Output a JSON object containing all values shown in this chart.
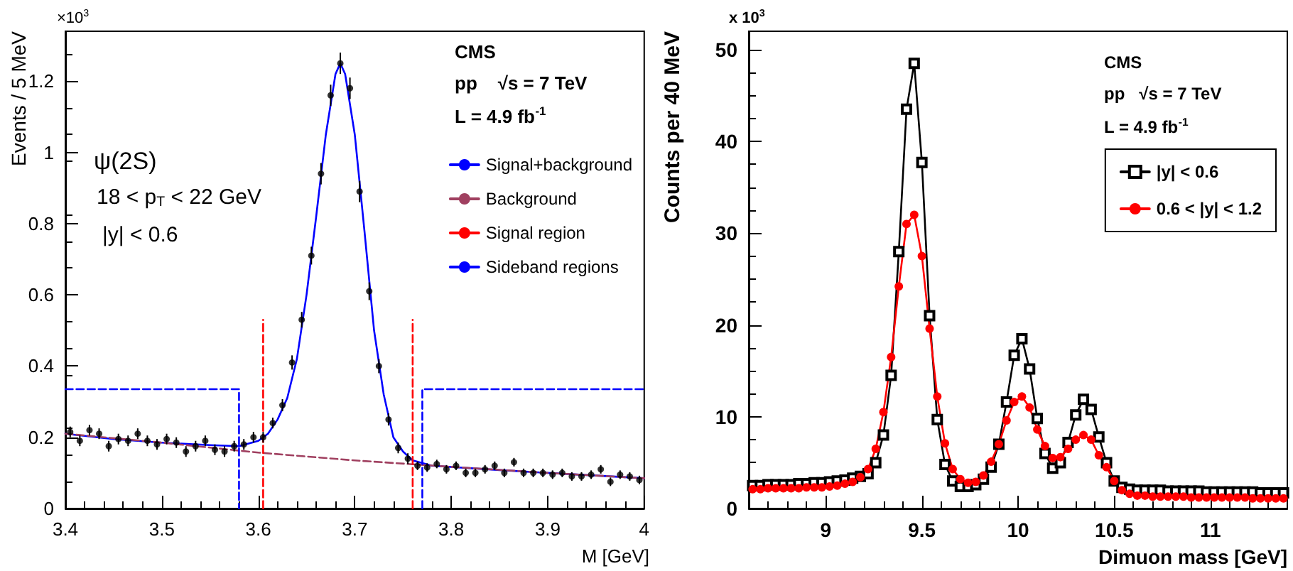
{
  "chart_data": [
    {
      "type": "scatter",
      "xlabel": "M [GeV]",
      "ylabel": "Events / 5 MeV",
      "xlim": [
        3.4,
        4.0
      ],
      "ylim": [
        0,
        1.34
      ],
      "xticks": [
        {
          "value": 3.4,
          "label": "3.4"
        },
        {
          "value": 3.5,
          "label": "3.5"
        },
        {
          "value": 3.6,
          "label": "3.6"
        },
        {
          "value": 3.7,
          "label": "3.7"
        },
        {
          "value": 3.8,
          "label": "3.8"
        },
        {
          "value": 3.9,
          "label": "3.9"
        },
        {
          "value": 4.0,
          "label": "4"
        }
      ],
      "yticks": [
        0,
        0.2,
        0.4,
        0.6,
        0.8,
        1,
        1.2
      ],
      "legend": "top right",
      "annotations": [
        "×10$^{3}$",
        "ψ(2S)",
        "18 < p$_{T}$ < 22 GeV",
        "|y| < 0.6",
        "CMS",
        "pp    √s = 7 TeV",
        "L = 4.9 fb$^{-1}$"
      ],
      "series": [
        {
          "color": "#000000",
          "marker": "circle",
          "x": [
            3.405,
            3.415,
            3.425,
            3.435,
            3.445,
            3.455,
            3.465,
            3.475,
            3.485,
            3.495,
            3.505,
            3.515,
            3.525,
            3.535,
            3.545,
            3.555,
            3.565,
            3.575,
            3.585,
            3.595,
            3.605,
            3.615,
            3.625,
            3.635,
            3.645,
            3.655,
            3.665,
            3.675,
            3.685,
            3.695,
            3.705,
            3.715,
            3.725,
            3.735,
            3.745,
            3.755,
            3.765,
            3.775,
            3.785,
            3.795,
            3.805,
            3.815,
            3.825,
            3.835,
            3.845,
            3.855,
            3.865,
            3.875,
            3.885,
            3.895,
            3.905,
            3.915,
            3.925,
            3.935,
            3.945,
            3.955,
            3.965,
            3.975,
            3.985,
            3.995
          ],
          "values": [
            0.215,
            0.19,
            0.22,
            0.21,
            0.175,
            0.195,
            0.19,
            0.21,
            0.19,
            0.18,
            0.195,
            0.185,
            0.16,
            0.175,
            0.19,
            0.165,
            0.16,
            0.175,
            0.18,
            0.2,
            0.2,
            0.24,
            0.29,
            0.41,
            0.53,
            0.71,
            0.94,
            1.16,
            1.25,
            1.18,
            0.89,
            0.61,
            0.4,
            0.25,
            0.17,
            0.14,
            0.12,
            0.115,
            0.125,
            0.11,
            0.12,
            0.1,
            0.1,
            0.11,
            0.12,
            0.1,
            0.13,
            0.1,
            0.1,
            0.1,
            0.095,
            0.1,
            0.09,
            0.09,
            0.095,
            0.11,
            0.075,
            0.095,
            0.09,
            0.08
          ],
          "errors": [
            0.015,
            0.015,
            0.015,
            0.015,
            0.015,
            0.015,
            0.015,
            0.015,
            0.015,
            0.015,
            0.015,
            0.015,
            0.015,
            0.015,
            0.015,
            0.015,
            0.015,
            0.015,
            0.015,
            0.015,
            0.015,
            0.015,
            0.017,
            0.02,
            0.022,
            0.025,
            0.03,
            0.03,
            0.03,
            0.03,
            0.03,
            0.025,
            0.02,
            0.017,
            0.015,
            0.015,
            0.012,
            0.012,
            0.012,
            0.012,
            0.012,
            0.012,
            0.012,
            0.012,
            0.012,
            0.012,
            0.012,
            0.012,
            0.012,
            0.012,
            0.012,
            0.012,
            0.012,
            0.012,
            0.012,
            0.012,
            0.012,
            0.012,
            0.012,
            0.012
          ]
        },
        {
          "type": "line",
          "name": "Signal+background",
          "color": "#0000ff",
          "marker": "none",
          "line_style": "solid",
          "x": [
            3.4,
            3.45,
            3.5,
            3.55,
            3.58,
            3.6,
            3.61,
            3.62,
            3.63,
            3.64,
            3.65,
            3.66,
            3.67,
            3.68,
            3.685,
            3.69,
            3.7,
            3.71,
            3.72,
            3.73,
            3.74,
            3.75,
            3.76,
            3.78,
            3.85,
            3.9,
            4.0
          ],
          "values": [
            0.21,
            0.195,
            0.185,
            0.178,
            0.175,
            0.19,
            0.21,
            0.25,
            0.31,
            0.42,
            0.6,
            0.82,
            1.05,
            1.22,
            1.25,
            1.22,
            1.05,
            0.78,
            0.5,
            0.32,
            0.2,
            0.16,
            0.135,
            0.12,
            0.108,
            0.1,
            0.085
          ]
        },
        {
          "type": "line",
          "name": "Background",
          "color": "#a04060",
          "marker": "none",
          "line_style": "dashed",
          "x": [
            3.4,
            3.5,
            3.6,
            3.7,
            3.8,
            3.9,
            4.0
          ],
          "values": [
            0.21,
            0.185,
            0.157,
            0.135,
            0.117,
            0.1,
            0.085
          ]
        },
        {
          "type": "line",
          "name": "Signal region",
          "color": "#ff0000",
          "marker": "none",
          "line_style": "dashed",
          "x": [
            3.605,
            3.605,
            3.68,
            3.76,
            3.76
          ],
          "values": [
            0,
            0.53,
            null,
            0,
            0.53
          ]
        },
        {
          "type": "line",
          "name": "Sideband regions",
          "color": "#0000ff",
          "marker": "none",
          "line_style": "dashed",
          "x": [
            3.4,
            3.58,
            3.58,
            3.675,
            3.77,
            3.77,
            4.0
          ],
          "values": [
            0.335,
            0.335,
            0,
            null,
            0,
            0.335,
            0.335
          ]
        }
      ]
    },
    {
      "type": "line",
      "xlabel": "Dimuon mass [GeV]",
      "ylabel": "Counts per 40 MeV",
      "xlim": [
        8.6,
        11.4
      ],
      "ylim": [
        0,
        52
      ],
      "xticks": [
        9,
        9.5,
        10,
        10.5,
        11
      ],
      "yticks": [
        0,
        10,
        20,
        30,
        40,
        50
      ],
      "legend": "top right",
      "annotations": [
        "x 10$^{3}$",
        "CMS",
        "pp   √s = 7 TeV",
        "L = 4.9 fb$^{-1}$"
      ],
      "x": [
        8.62,
        8.66,
        8.7,
        8.74,
        8.78,
        8.82,
        8.86,
        8.9,
        8.94,
        8.98,
        9.02,
        9.06,
        9.1,
        9.14,
        9.18,
        9.22,
        9.26,
        9.3,
        9.34,
        9.38,
        9.42,
        9.46,
        9.5,
        9.54,
        9.58,
        9.62,
        9.66,
        9.7,
        9.74,
        9.78,
        9.82,
        9.86,
        9.9,
        9.94,
        9.98,
        10.02,
        10.06,
        10.1,
        10.14,
        10.18,
        10.22,
        10.26,
        10.3,
        10.34,
        10.38,
        10.42,
        10.46,
        10.5,
        10.54,
        10.58,
        10.62,
        10.66,
        10.7,
        10.74,
        10.78,
        10.82,
        10.86,
        10.9,
        10.94,
        10.98,
        11.02,
        11.06,
        11.1,
        11.14,
        11.18,
        11.22,
        11.26,
        11.3,
        11.34,
        11.38
      ],
      "series": [
        {
          "name": "|y| < 0.6",
          "color": "#000000",
          "marker": "square",
          "values": [
            2.5,
            2.5,
            2.6,
            2.6,
            2.6,
            2.6,
            2.7,
            2.7,
            2.8,
            2.8,
            2.9,
            3.0,
            3.1,
            3.3,
            3.5,
            3.8,
            5.0,
            8.0,
            14.5,
            28,
            43.5,
            48.5,
            37.7,
            21,
            9.7,
            4.8,
            3.0,
            2.4,
            2.4,
            2.6,
            3.2,
            4.5,
            7.0,
            11.6,
            16.7,
            18.5,
            15.2,
            9.8,
            6.0,
            4.4,
            5.0,
            7.2,
            10.2,
            11.9,
            10.8,
            7.8,
            5.0,
            3.0,
            2.3,
            2.1,
            2.0,
            2.0,
            2.0,
            2.0,
            1.9,
            1.9,
            1.9,
            1.9,
            1.9,
            1.8,
            1.8,
            1.8,
            1.8,
            1.8,
            1.8,
            1.8,
            1.7,
            1.7,
            1.7,
            1.7
          ]
        },
        {
          "name": "0.6 < |y| < 1.2",
          "color": "#ff0000",
          "marker": "circle",
          "values": [
            2.1,
            2.1,
            2.2,
            2.2,
            2.2,
            2.2,
            2.2,
            2.3,
            2.3,
            2.3,
            2.4,
            2.5,
            2.7,
            2.9,
            3.4,
            4.3,
            6.5,
            10.5,
            16.5,
            24.2,
            31,
            32,
            27.5,
            19.6,
            12.2,
            7.1,
            4.3,
            3.2,
            2.8,
            2.9,
            3.6,
            5.1,
            7.0,
            9.6,
            11.6,
            12.2,
            11.0,
            8.6,
            6.8,
            5.5,
            5.6,
            6.5,
            7.5,
            8.0,
            7.5,
            5.8,
            4.5,
            3.0,
            2.0,
            1.6,
            1.4,
            1.4,
            1.3,
            1.3,
            1.3,
            1.3,
            1.3,
            1.2,
            1.2,
            1.2,
            1.2,
            1.2,
            1.2,
            1.2,
            1.2,
            1.1,
            1.1,
            1.1,
            1.1,
            1.1
          ]
        }
      ]
    }
  ]
}
